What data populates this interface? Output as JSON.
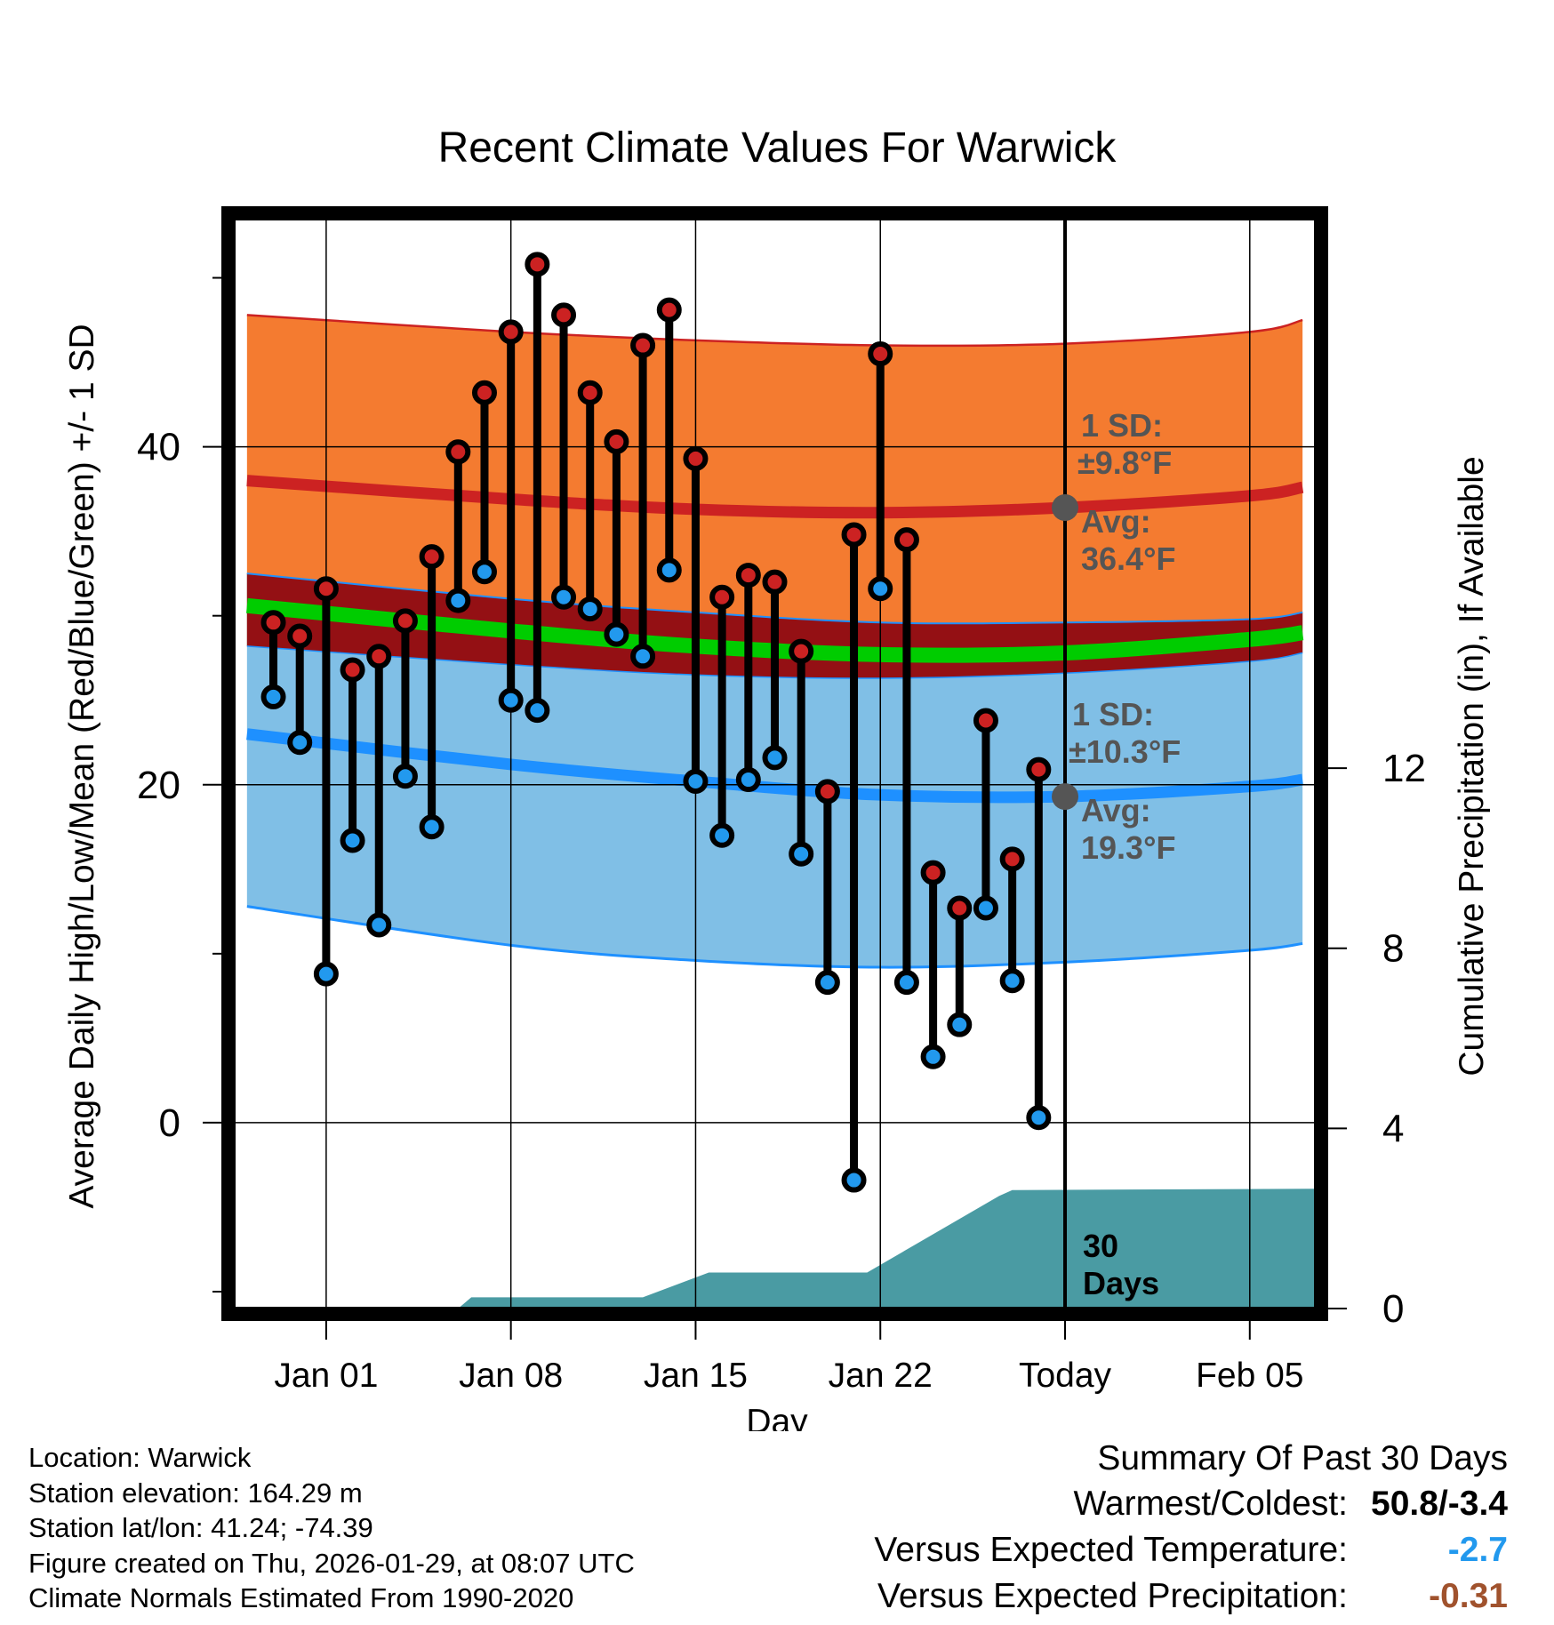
{
  "chart_data": {
    "type": "line",
    "title": "Recent Climate Values For Warwick",
    "xlabel": "Day",
    "ylabel": "Average Daily High/Low/Mean (Red/Blue/Green) +/- 1 SD",
    "y2label": "Cumulative Precipitation (in), If Available",
    "ylim": [
      -11,
      53.5
    ],
    "y2lim": [
      0,
      24.2
    ],
    "yticks": [
      0,
      20,
      40
    ],
    "y2ticks": [
      0,
      4,
      8,
      12
    ],
    "x_range_days": [
      -3.5,
      37.5
    ],
    "xticks": [
      {
        "day": 0,
        "label": "Jan 01"
      },
      {
        "day": 7,
        "label": "Jan 08"
      },
      {
        "day": 14,
        "label": "Jan 15"
      },
      {
        "day": 21,
        "label": "Jan 22"
      },
      {
        "day": 28,
        "label": "Today"
      },
      {
        "day": 35,
        "label": "Feb 05"
      }
    ],
    "today_day": 28,
    "normals": {
      "days": [
        -3,
        7,
        14,
        21,
        28,
        35,
        37
      ],
      "high_upper": [
        47.8,
        46.8,
        46.3,
        46.0,
        46.1,
        46.8,
        47.5
      ],
      "high_mean": [
        38.0,
        36.9,
        36.3,
        36.1,
        36.4,
        37.1,
        37.6
      ],
      "high_lower": [
        28.2,
        27.1,
        26.5,
        26.3,
        26.6,
        27.3,
        27.8
      ],
      "mean": [
        30.6,
        29.1,
        28.2,
        27.7,
        27.8,
        28.6,
        29.0
      ],
      "low_upper": [
        32.5,
        31.0,
        30.2,
        29.6,
        29.6,
        29.8,
        30.2
      ],
      "low_mean": [
        23.0,
        21.2,
        20.2,
        19.4,
        19.3,
        19.9,
        20.3
      ],
      "low_lower": [
        12.8,
        10.5,
        9.6,
        9.2,
        9.5,
        10.2,
        10.6
      ]
    },
    "series": [
      {
        "name": "High",
        "color": "#cc2222",
        "x": [
          -2,
          -1,
          0,
          1,
          2,
          3,
          4,
          5,
          6,
          7,
          8,
          9,
          10,
          11,
          12,
          13,
          14,
          15,
          16,
          17,
          18,
          19,
          20,
          21,
          22,
          23,
          24,
          25,
          26,
          27
        ],
        "values": [
          29.6,
          28.8,
          31.6,
          26.8,
          27.6,
          29.7,
          33.5,
          39.7,
          43.2,
          46.8,
          50.8,
          47.8,
          43.2,
          40.3,
          46.0,
          48.1,
          39.3,
          31.1,
          32.4,
          32.0,
          27.9,
          19.6,
          34.8,
          45.5,
          34.5,
          14.8,
          12.7,
          23.8,
          15.6,
          20.9
        ]
      },
      {
        "name": "Low",
        "color": "#2299ee",
        "x": [
          -2,
          -1,
          0,
          1,
          2,
          3,
          4,
          5,
          6,
          7,
          8,
          9,
          10,
          11,
          12,
          13,
          14,
          15,
          16,
          17,
          18,
          19,
          20,
          21,
          22,
          23,
          24,
          25,
          26,
          27
        ],
        "values": [
          25.2,
          22.5,
          8.8,
          16.7,
          11.7,
          20.5,
          17.5,
          30.9,
          32.6,
          25.0,
          24.4,
          31.1,
          30.4,
          28.9,
          27.6,
          32.7,
          20.2,
          17.0,
          20.3,
          21.6,
          15.9,
          8.3,
          -3.4,
          31.6,
          8.3,
          3.9,
          5.8,
          12.7,
          8.4,
          0.3
        ]
      },
      {
        "name": "Cumulative Precipitation",
        "color": "#4a9ba3",
        "axis": "y2",
        "x": [
          -3.5,
          5.0,
          5.5,
          12.0,
          14.5,
          19.0,
          20.5,
          25.5,
          26.0,
          37.5
        ],
        "values": [
          0,
          0,
          0.25,
          0.25,
          0.8,
          0.8,
          0.8,
          2.5,
          2.63,
          2.66
        ]
      }
    ],
    "annotations": {
      "high_sd_label": "1 SD:",
      "high_sd_value": "±9.8°F",
      "high_avg_label": "Avg:",
      "high_avg_value": "36.4°F",
      "low_sd_label": "1 SD:",
      "low_sd_value": "±10.3°F",
      "low_avg_label": "Avg:",
      "low_avg_value": "19.3°F",
      "days_number": "30",
      "days_word": "Days",
      "high_avg_marker": 36.4,
      "low_avg_marker": 19.3
    },
    "colors": {
      "high_band": "#f47b30",
      "high_mean_line": "#cc2222",
      "overlap_band": "#941014",
      "mean_line": "#00cc00",
      "low_band": "#80bfe6",
      "low_mean_line": "#1e90ff",
      "precip": "#4a9ba3",
      "label_gray": "#555555"
    }
  },
  "footer": {
    "location": "Location: Warwick",
    "elevation": "Station elevation: 164.29 m",
    "latlon": "Station lat/lon: 41.24; -74.39",
    "created": "Figure created on Thu, 2026-01-29, at 08:07 UTC",
    "normals": "Climate Normals Estimated From 1990-2020"
  },
  "summary": {
    "title": "Summary Of Past 30 Days",
    "warmest_label": "Warmest/Coldest:",
    "warmest_value": "50.8/-3.4",
    "temp_label": "Versus Expected Temperature:",
    "temp_value": "-2.7",
    "temp_color": "#2299ee",
    "precip_label": "Versus Expected Precipitation:",
    "precip_value": "-0.31",
    "precip_color": "#a0522d"
  }
}
